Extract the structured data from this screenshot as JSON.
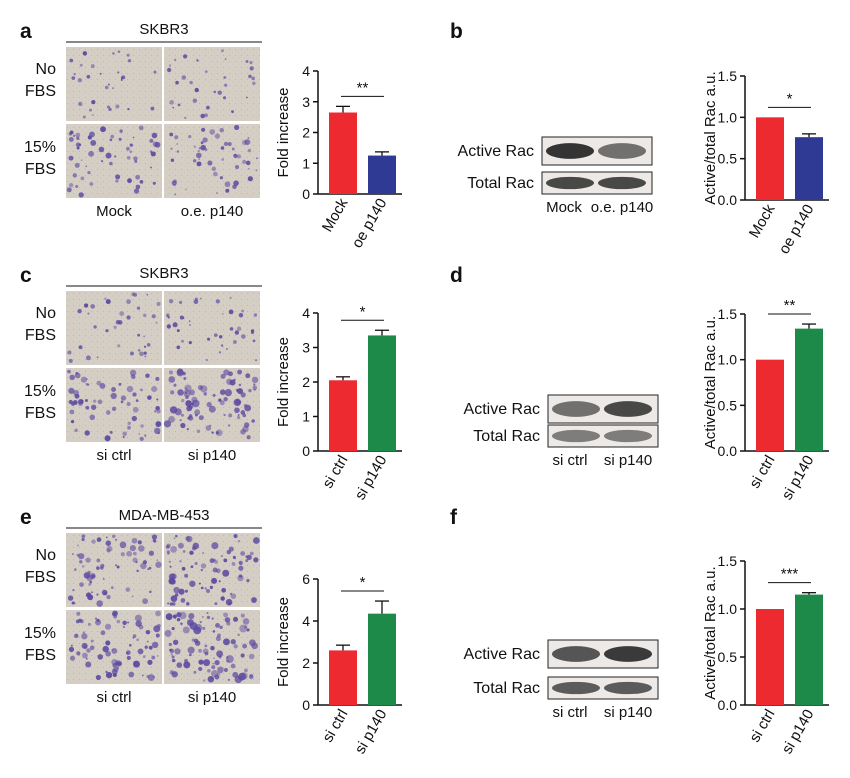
{
  "colors": {
    "red": "#ec2a30",
    "blue": "#2e3a94",
    "green": "#1e8a4a",
    "axis": "#111111",
    "micro_background": "#d7d0c6",
    "micro_cells": "#5a4aa0",
    "blot_band": "#2a2a2a"
  },
  "panels": [
    {
      "label": "a",
      "cell_line": "SKBR3",
      "row_labels": [
        [
          "No",
          "FBS"
        ],
        [
          "15%",
          "FBS"
        ]
      ],
      "column_labels": [
        "Mock",
        "o.e. p140"
      ],
      "microscopy_density": [
        [
          0.15,
          0.18
        ],
        [
          0.45,
          0.42
        ]
      ]
    },
    {
      "label": "b",
      "blot_rows": [
        "Active Rac",
        "Total Rac"
      ],
      "blot_lanes": [
        "Mock",
        "o.e. p140"
      ],
      "active_band_intensity": [
        1.0,
        0.55
      ],
      "total_band_intensity": [
        0.85,
        0.85
      ]
    },
    {
      "label": "c",
      "cell_line": "SKBR3",
      "row_labels": [
        [
          "No",
          "FBS"
        ],
        [
          "15%",
          "FBS"
        ]
      ],
      "column_labels": [
        "si ctrl",
        "si p140"
      ],
      "microscopy_density": [
        [
          0.22,
          0.25
        ],
        [
          0.55,
          0.8
        ]
      ]
    },
    {
      "label": "d",
      "blot_rows": [
        "Active Rac",
        "Total Rac"
      ],
      "blot_lanes": [
        "si ctrl",
        "si p140"
      ],
      "active_band_intensity": [
        0.55,
        0.85
      ],
      "total_band_intensity": [
        0.45,
        0.45
      ]
    },
    {
      "label": "e",
      "cell_line": "MDA-MB-453",
      "row_labels": [
        [
          "No",
          "FBS"
        ],
        [
          "15%",
          "FBS"
        ]
      ],
      "column_labels": [
        "si ctrl",
        "si p140"
      ],
      "microscopy_density": [
        [
          0.6,
          0.7
        ],
        [
          0.7,
          0.9
        ]
      ]
    },
    {
      "label": "f",
      "blot_rows": [
        "Active Rac",
        "Total Rac"
      ],
      "blot_lanes": [
        "si ctrl",
        "si p140"
      ],
      "active_band_intensity": [
        0.75,
        0.95
      ],
      "total_band_intensity": [
        0.7,
        0.7
      ]
    }
  ],
  "chart_data": [
    {
      "type": "bar",
      "panel": "a",
      "categories": [
        "Mock",
        "oe p140"
      ],
      "values": [
        2.65,
        1.25
      ],
      "errors": [
        0.2,
        0.12
      ],
      "bar_colors": [
        "#ec2a30",
        "#2e3a94"
      ],
      "ylabel": "Fold increase",
      "ylim": [
        0,
        4
      ],
      "yticks": [
        "0",
        "1",
        "2",
        "3",
        "4"
      ],
      "significance": "**"
    },
    {
      "type": "bar",
      "panel": "b",
      "categories": [
        "Mock",
        "oe p140"
      ],
      "values": [
        1.0,
        0.76
      ],
      "errors": [
        0.0,
        0.04
      ],
      "bar_colors": [
        "#ec2a30",
        "#2e3a94"
      ],
      "ylabel": "Active/total Rac a.u.",
      "ylim": [
        0,
        1.5
      ],
      "yticks": [
        "0.0",
        "0.5",
        "1.0",
        "1.5"
      ],
      "significance": "*"
    },
    {
      "type": "bar",
      "panel": "c",
      "categories": [
        "si ctrl",
        "si p140"
      ],
      "values": [
        2.05,
        3.35
      ],
      "errors": [
        0.1,
        0.15
      ],
      "bar_colors": [
        "#ec2a30",
        "#1e8a4a"
      ],
      "ylabel": "Fold increase",
      "ylim": [
        0,
        4
      ],
      "yticks": [
        "0",
        "1",
        "2",
        "3",
        "4"
      ],
      "significance": "*"
    },
    {
      "type": "bar",
      "panel": "d",
      "categories": [
        "si ctrl",
        "si p140"
      ],
      "values": [
        1.0,
        1.34
      ],
      "errors": [
        0.0,
        0.05
      ],
      "bar_colors": [
        "#ec2a30",
        "#1e8a4a"
      ],
      "ylabel": "Active/total Rac a.u.",
      "ylim": [
        0,
        1.5
      ],
      "yticks": [
        "0.0",
        "0.5",
        "1.0",
        "1.5"
      ],
      "significance": "**"
    },
    {
      "type": "bar",
      "panel": "e",
      "categories": [
        "si ctrl",
        "si p140"
      ],
      "values": [
        2.6,
        4.35
      ],
      "errors": [
        0.25,
        0.6
      ],
      "bar_colors": [
        "#ec2a30",
        "#1e8a4a"
      ],
      "ylabel": "Fold increase",
      "ylim": [
        0,
        6
      ],
      "yticks": [
        "0",
        "2",
        "4",
        "6"
      ],
      "significance": "*"
    },
    {
      "type": "bar",
      "panel": "f",
      "categories": [
        "si ctrl",
        "si p140"
      ],
      "values": [
        1.0,
        1.15
      ],
      "errors": [
        0.0,
        0.02
      ],
      "bar_colors": [
        "#ec2a30",
        "#1e8a4a"
      ],
      "ylabel": "Active/total Rac a.u.",
      "ylim": [
        0,
        1.5
      ],
      "yticks": [
        "0.0",
        "0.5",
        "1.0",
        "1.5"
      ],
      "significance": "***"
    }
  ]
}
